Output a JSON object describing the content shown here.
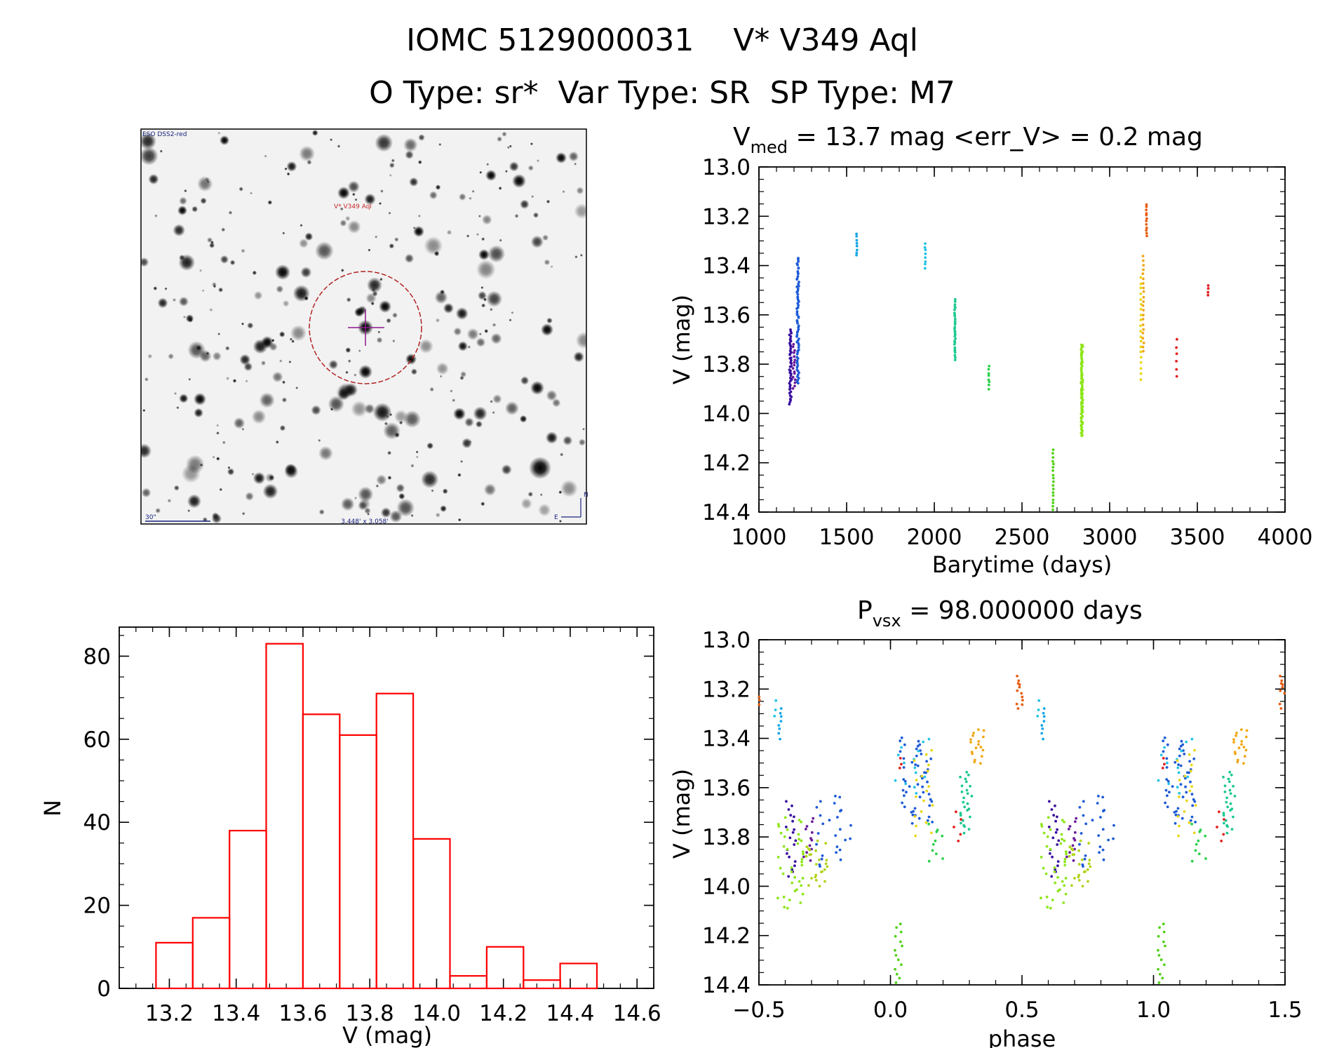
{
  "title": {
    "line1": "IOMC 5129000031    V* V349 Aql",
    "line2": "O Type: sr*  Var Type: SR  SP Type: M7"
  },
  "finder_chart": {
    "survey_label": "ESO DSS2-red",
    "object_label": "V* V349 Aql",
    "scale_label": "30\"",
    "fov_label": "3.448' x 3.058'",
    "compass_north": "N",
    "compass_east": "E"
  },
  "colors": {
    "histogram_edge": "#ff0000",
    "axis": "#000000",
    "finder_marker": "#b22222"
  },
  "chart_data": [
    {
      "id": "light_curve",
      "type": "scatter",
      "title_main": "V",
      "title_sub": "med",
      "title_rest": " = 13.7 mag <err_V> = 0.2 mag",
      "xlabel": "Barytime (days)",
      "ylabel": "V (mag)",
      "xlim": [
        1000,
        4000
      ],
      "ylim": [
        13.0,
        14.4
      ],
      "y_inverted": true,
      "xticks": [
        1000,
        1500,
        2000,
        2500,
        3000,
        3500,
        4000
      ],
      "xtick_labels": [
        "1000",
        "1500",
        "2000",
        "2500",
        "3000",
        "3500",
        "4000"
      ],
      "yticks": [
        13.0,
        13.2,
        13.4,
        13.6,
        13.8,
        14.0,
        14.2,
        14.4
      ],
      "ytick_labels": [
        "13.0",
        "13.2",
        "13.4",
        "13.6",
        "13.8",
        "14.0",
        "14.2",
        "14.4"
      ],
      "groups": [
        {
          "x": 1180,
          "dx": 14,
          "ymin": 13.66,
          "ymax": 13.96,
          "n": 44,
          "color": "#3a0fa0"
        },
        {
          "x": 1200,
          "dx": 14,
          "ymin": 13.72,
          "ymax": 13.9,
          "n": 16,
          "color": "#6a1b9a"
        },
        {
          "x": 1222,
          "dx": 12,
          "ymin": 13.37,
          "ymax": 13.88,
          "n": 70,
          "color": "#1e5bd6"
        },
        {
          "x": 1558,
          "dx": 4,
          "ymin": 13.27,
          "ymax": 13.36,
          "n": 8,
          "color": "#16a6e6"
        },
        {
          "x": 1948,
          "dx": 4,
          "ymin": 13.31,
          "ymax": 13.41,
          "n": 8,
          "color": "#22c3e6"
        },
        {
          "x": 2118,
          "dx": 6,
          "ymin": 13.54,
          "ymax": 13.78,
          "n": 30,
          "color": "#1dc990"
        },
        {
          "x": 2312,
          "dx": 5,
          "ymin": 13.81,
          "ymax": 13.9,
          "n": 8,
          "color": "#2bd14a"
        },
        {
          "x": 2678,
          "dx": 5,
          "ymin": 14.15,
          "ymax": 14.39,
          "n": 18,
          "color": "#52d11b"
        },
        {
          "x": 2842,
          "dx": 10,
          "ymin": 13.72,
          "ymax": 14.09,
          "n": 80,
          "color": "#8ee61a"
        },
        {
          "x": 3178,
          "dx": 4,
          "ymin": 13.45,
          "ymax": 13.86,
          "n": 20,
          "color": "#e8d71a"
        },
        {
          "x": 3192,
          "dx": 6,
          "ymin": 13.36,
          "ymax": 13.75,
          "n": 22,
          "color": "#f0a818"
        },
        {
          "x": 3210,
          "dx": 4,
          "ymin": 13.15,
          "ymax": 13.28,
          "n": 12,
          "color": "#e85e12"
        },
        {
          "x": 3382,
          "dx": 4,
          "ymin": 13.7,
          "ymax": 13.85,
          "n": 6,
          "color": "#e31f1f"
        },
        {
          "x": 3562,
          "dx": 3,
          "ymin": 13.48,
          "ymax": 13.52,
          "n": 4,
          "color": "#e31f1f"
        }
      ]
    },
    {
      "id": "phase_curve",
      "type": "scatter",
      "title_main": "P",
      "title_sub": "vsx",
      "title_rest": " = 98.000000 days",
      "xlabel": "phase",
      "ylabel": "V (mag)",
      "xlim": [
        -0.5,
        1.5
      ],
      "ylim": [
        13.0,
        14.4
      ],
      "y_inverted": true,
      "period_days": 98.0,
      "xticks": [
        -0.5,
        0.0,
        0.5,
        1.0,
        1.5
      ],
      "xtick_labels": [
        "−0.5",
        "0.0",
        "0.5",
        "1.0",
        "1.5"
      ],
      "yticks": [
        13.0,
        13.2,
        13.4,
        13.6,
        13.8,
        14.0,
        14.2,
        14.4
      ],
      "ytick_labels": [
        "13.0",
        "13.2",
        "13.4",
        "13.6",
        "13.8",
        "14.0",
        "14.2",
        "14.4"
      ],
      "groups": [
        {
          "phase": 0.62,
          "dphase": 0.04,
          "ymin": 13.66,
          "ymax": 13.96,
          "n": 20,
          "color": "#3a0fa0"
        },
        {
          "phase": 0.69,
          "dphase": 0.04,
          "ymin": 13.72,
          "ymax": 13.9,
          "n": 12,
          "color": "#6a1b9a"
        },
        {
          "phase": 0.78,
          "dphase": 0.14,
          "ymin": 13.63,
          "ymax": 13.92,
          "n": 26,
          "color": "#1e5bd6"
        },
        {
          "phase": 0.1,
          "dphase": 0.13,
          "ymin": 13.4,
          "ymax": 13.75,
          "n": 50,
          "color": "#1e5bd6"
        },
        {
          "phase": 0.58,
          "dphase": 0.01,
          "ymin": 13.28,
          "ymax": 13.4,
          "n": 8,
          "color": "#16a6e6"
        },
        {
          "phase": 0.56,
          "dphase": 0.01,
          "ymin": 13.25,
          "ymax": 13.31,
          "n": 3,
          "color": "#22c3e6"
        },
        {
          "phase": 0.09,
          "dphase": 0.15,
          "ymin": 13.4,
          "ymax": 13.62,
          "n": 14,
          "color": "#22c3e6"
        },
        {
          "phase": 0.29,
          "dphase": 0.05,
          "ymin": 13.54,
          "ymax": 13.78,
          "n": 26,
          "color": "#1dc990"
        },
        {
          "phase": 0.17,
          "dphase": 0.06,
          "ymin": 13.75,
          "ymax": 13.9,
          "n": 10,
          "color": "#2bd14a"
        },
        {
          "phase": 0.03,
          "dphase": 0.04,
          "ymin": 14.15,
          "ymax": 14.39,
          "n": 14,
          "color": "#52d11b"
        },
        {
          "phase": 0.62,
          "dphase": 0.1,
          "ymin": 13.72,
          "ymax": 14.09,
          "n": 38,
          "color": "#8ee61a"
        },
        {
          "phase": 0.72,
          "dphase": 0.08,
          "ymin": 13.82,
          "ymax": 14.0,
          "n": 24,
          "color": "#b0d41a"
        },
        {
          "phase": 0.13,
          "dphase": 0.08,
          "ymin": 13.45,
          "ymax": 13.8,
          "n": 18,
          "color": "#e8d71a"
        },
        {
          "phase": 0.33,
          "dphase": 0.05,
          "ymin": 13.36,
          "ymax": 13.5,
          "n": 18,
          "color": "#f0a818"
        },
        {
          "phase": 0.49,
          "dphase": 0.03,
          "ymin": 13.15,
          "ymax": 13.28,
          "n": 12,
          "color": "#e85e12"
        },
        {
          "phase": 0.26,
          "dphase": 0.04,
          "ymin": 13.7,
          "ymax": 13.82,
          "n": 5,
          "color": "#e31f1f"
        },
        {
          "phase": 0.04,
          "dphase": 0.01,
          "ymin": 13.48,
          "ymax": 13.52,
          "n": 3,
          "color": "#e31f1f"
        }
      ]
    },
    {
      "id": "histogram",
      "type": "bar",
      "xlabel": "V (mag)",
      "ylabel": "N",
      "xlim": [
        13.05,
        14.65
      ],
      "ylim": [
        0,
        87
      ],
      "xticks": [
        13.2,
        13.4,
        13.6,
        13.8,
        14.0,
        14.2,
        14.4,
        14.6
      ],
      "xtick_labels": [
        "13.2",
        "13.4",
        "13.6",
        "13.8",
        "14.0",
        "14.2",
        "14.4",
        "14.6"
      ],
      "yticks": [
        0,
        20,
        40,
        60,
        80
      ],
      "ytick_labels": [
        "0",
        "20",
        "40",
        "60",
        "80"
      ],
      "bin_edges": [
        13.16,
        13.27,
        13.38,
        13.49,
        13.6,
        13.71,
        13.82,
        13.93,
        14.04,
        14.15,
        14.26,
        14.37,
        14.48
      ],
      "values": [
        11,
        17,
        38,
        83,
        66,
        61,
        71,
        36,
        3,
        10,
        2,
        6
      ]
    }
  ]
}
